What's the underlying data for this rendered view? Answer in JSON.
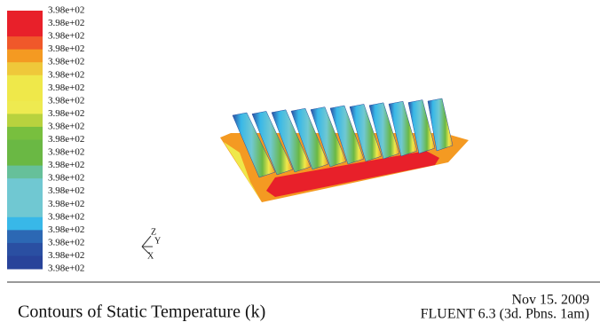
{
  "legend": {
    "labels": [
      "3.98e+02",
      "3.98e+02",
      "3.98e+02",
      "3.98e+02",
      "3.98e+02",
      "3.98e+02",
      "3.98e+02",
      "3.98e+02",
      "3.98e+02",
      "3.98e+02",
      "3.98e+02",
      "3.98e+02",
      "3.98e+02",
      "3.98e+02",
      "3.98e+02",
      "3.98e+02",
      "3.98e+02",
      "3.98e+02",
      "3.98e+02",
      "3.98e+02",
      "3.98e+02"
    ],
    "colors": [
      "#e8202a",
      "#e8202a",
      "#f0582a",
      "#f49a22",
      "#efc83a",
      "#efe84a",
      "#efe84a",
      "#eeea50",
      "#b8d23e",
      "#78bf3e",
      "#6ab844",
      "#6ab844",
      "#66c09a",
      "#70c8d2",
      "#70c8d2",
      "#70c8d2",
      "#38b8e8",
      "#2c68b4",
      "#2a4fa2",
      "#28439a"
    ]
  },
  "axes": {
    "z": "Z",
    "y": "Y",
    "x": "X"
  },
  "footer": {
    "title": "Contours of Static Temperature (k)",
    "date": "Nov 15. 2009",
    "version": "FLUENT 6.3 (3d. Pbns. 1am)"
  }
}
